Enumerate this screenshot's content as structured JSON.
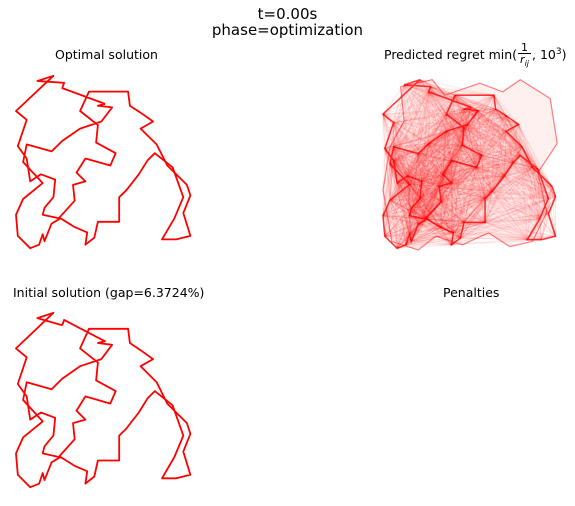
{
  "header": {
    "time_line": "t=0.00s",
    "phase_line": "phase=optimization"
  },
  "panels": {
    "optimal_title": "Optimal solution",
    "regret_title_prefix": "Predicted regret min(",
    "regret_title_num": "1",
    "regret_title_den": "r",
    "regret_title_den_sub": "ij",
    "regret_title_mid": ", 10",
    "regret_title_exp": "3",
    "regret_title_suffix": ")",
    "initial_title": "Initial solution (gap=6.3724%)",
    "penalties_title": "Penalties"
  },
  "colors": {
    "route": "#ff0000",
    "background": "#ffffff"
  },
  "chart_data": [
    {
      "type": "line",
      "name": "optimal-tour",
      "title": "Optimal solution",
      "closed": true,
      "x": [
        0.5,
        0.26,
        0.27,
        0.12,
        0.21,
        0.0,
        0.06,
        0.01,
        0.06,
        0.08,
        0.14,
        0.22,
        0.21,
        0.16,
        0.15,
        0.24,
        0.33,
        0.32,
        0.39,
        0.34,
        0.39,
        0.53,
        0.56,
        0.45,
        0.46,
        0.36,
        0.41,
        0.63,
        0.64,
        0.7,
        0.77,
        0.7,
        0.79,
        0.85,
        0.96,
        0.98,
        0.94,
        0.98,
        0.9,
        0.82,
        0.89,
        0.94,
        0.88,
        0.78,
        0.74,
        0.69,
        0.62,
        0.58,
        0.58,
        0.46,
        0.44,
        0.39,
        0.4,
        0.33,
        0.25,
        0.2,
        0.16,
        0.15,
        0.13,
        0.08,
        0.01,
        0.0,
        0.04,
        0.15,
        0.04,
        0.06,
        0.2,
        0.26,
        0.36,
        0.48,
        0.54,
        0.46,
        0.5
      ],
      "y": [
        0.83,
        0.92,
        0.95,
        0.96,
        0.99,
        0.79,
        0.74,
        0.59,
        0.52,
        0.39,
        0.43,
        0.4,
        0.3,
        0.24,
        0.2,
        0.18,
        0.28,
        0.37,
        0.39,
        0.44,
        0.52,
        0.48,
        0.55,
        0.61,
        0.71,
        0.79,
        0.9,
        0.9,
        0.82,
        0.78,
        0.73,
        0.69,
        0.6,
        0.48,
        0.37,
        0.31,
        0.21,
        0.08,
        0.06,
        0.06,
        0.18,
        0.3,
        0.47,
        0.55,
        0.51,
        0.43,
        0.34,
        0.3,
        0.16,
        0.16,
        0.07,
        0.03,
        0.1,
        0.13,
        0.18,
        0.15,
        0.05,
        0.09,
        0.03,
        0.01,
        0.08,
        0.2,
        0.29,
        0.38,
        0.5,
        0.6,
        0.56,
        0.62,
        0.69,
        0.73,
        0.81,
        0.82,
        0.83
      ]
    },
    {
      "type": "line",
      "name": "initial-tour",
      "title": "Initial solution (gap=6.3724%)",
      "closed": true,
      "x": [
        0.26,
        0.12,
        0.21,
        0.0,
        0.06,
        0.01,
        0.06,
        0.08,
        0.14,
        0.22,
        0.21,
        0.16,
        0.15,
        0.24,
        0.33,
        0.32,
        0.39,
        0.34,
        0.39,
        0.53,
        0.56,
        0.45,
        0.46,
        0.36,
        0.41,
        0.63,
        0.64,
        0.7,
        0.77,
        0.7,
        0.79,
        0.85,
        0.96,
        0.98,
        0.94,
        0.98,
        0.9,
        0.82,
        0.89,
        0.94,
        0.88,
        0.78,
        0.74,
        0.69,
        0.62,
        0.58,
        0.58,
        0.46,
        0.44,
        0.39,
        0.4,
        0.33,
        0.25,
        0.2,
        0.16,
        0.15,
        0.13,
        0.08,
        0.01,
        0.0,
        0.04,
        0.15,
        0.04,
        0.06,
        0.2,
        0.26,
        0.36,
        0.48,
        0.54,
        0.46,
        0.5,
        0.27,
        0.26
      ],
      "y": [
        0.92,
        0.96,
        0.99,
        0.79,
        0.74,
        0.59,
        0.52,
        0.39,
        0.43,
        0.4,
        0.3,
        0.24,
        0.2,
        0.18,
        0.28,
        0.37,
        0.39,
        0.44,
        0.52,
        0.48,
        0.55,
        0.61,
        0.71,
        0.79,
        0.9,
        0.9,
        0.82,
        0.78,
        0.73,
        0.69,
        0.6,
        0.48,
        0.37,
        0.31,
        0.21,
        0.08,
        0.06,
        0.06,
        0.18,
        0.3,
        0.47,
        0.55,
        0.51,
        0.43,
        0.34,
        0.3,
        0.16,
        0.16,
        0.07,
        0.03,
        0.1,
        0.13,
        0.18,
        0.15,
        0.05,
        0.09,
        0.03,
        0.01,
        0.08,
        0.2,
        0.29,
        0.38,
        0.5,
        0.6,
        0.56,
        0.62,
        0.69,
        0.73,
        0.81,
        0.82,
        0.83,
        0.95,
        0.92
      ]
    },
    {
      "type": "line",
      "name": "predicted-regret",
      "title": "Predicted regret",
      "closed": true,
      "x": [
        0.1,
        0.28,
        0.35,
        0.55,
        0.68,
        0.78,
        0.95,
        0.99,
        0.88,
        0.93,
        0.85,
        0.72,
        0.6,
        0.45,
        0.3,
        0.2,
        0.05,
        0.0,
        0.04,
        0.12,
        0.1
      ],
      "y": [
        0.95,
        0.99,
        0.9,
        0.97,
        0.92,
        0.99,
        0.88,
        0.62,
        0.45,
        0.22,
        0.05,
        0.02,
        0.1,
        0.03,
        0.08,
        0.0,
        0.05,
        0.35,
        0.6,
        0.75,
        0.95
      ]
    }
  ]
}
